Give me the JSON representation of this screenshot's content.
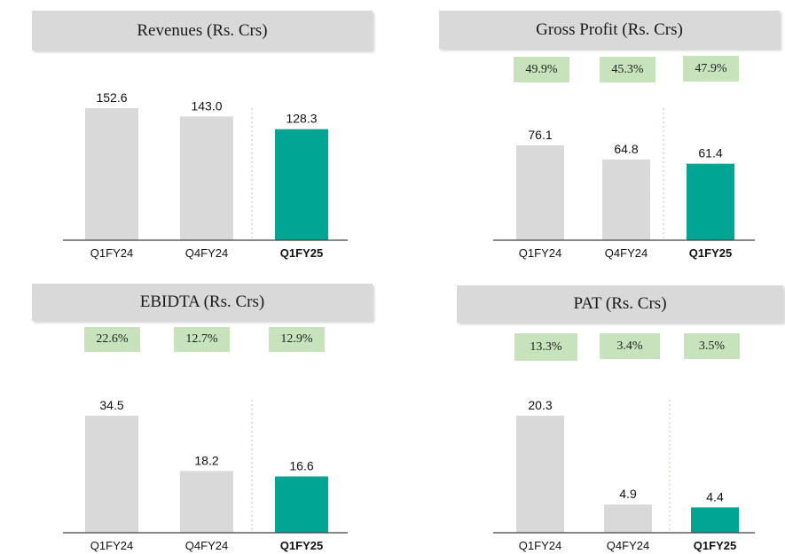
{
  "colors": {
    "past_bar": "#d9d9d9",
    "current_bar": "#00a693",
    "title_bg": "#d9d9d9",
    "badge_bg": "#c6e3bb",
    "divider": "#c9c9a8"
  },
  "chart_data": [
    {
      "type": "bar",
      "title": "Revenues (Rs. Crs)",
      "categories": [
        "Q1FY24",
        "Q4FY24",
        "Q1FY25"
      ],
      "values": [
        152.6,
        143.0,
        128.3
      ],
      "value_labels": [
        "152.6",
        "143.0",
        "128.3"
      ],
      "margins": [],
      "highlight_index": 2,
      "grid": false
    },
    {
      "type": "bar",
      "title": "Gross Profit (Rs. Crs)",
      "categories": [
        "Q1FY24",
        "Q4FY24",
        "Q1FY25"
      ],
      "values": [
        76.1,
        64.8,
        61.4
      ],
      "value_labels": [
        "76.1",
        "64.8",
        "61.4"
      ],
      "margins": [
        "49.9%",
        "45.3%",
        "47.9%"
      ],
      "highlight_index": 2,
      "grid": false
    },
    {
      "type": "bar",
      "title": "EBIDTA (Rs. Crs)",
      "categories": [
        "Q1FY24",
        "Q4FY24",
        "Q1FY25"
      ],
      "values": [
        34.5,
        18.2,
        16.6
      ],
      "value_labels": [
        "34.5",
        "18.2",
        "16.6"
      ],
      "margins": [
        "22.6%",
        "12.7%",
        "12.9%"
      ],
      "highlight_index": 2,
      "grid": false
    },
    {
      "type": "bar",
      "title": "PAT (Rs. Crs)",
      "categories": [
        "Q1FY24",
        "Q4FY24",
        "Q1FY25"
      ],
      "values": [
        20.3,
        4.9,
        4.4
      ],
      "value_labels": [
        "20.3",
        "4.9",
        "4.4"
      ],
      "margins": [
        "13.3%",
        "3.4%",
        "3.5%"
      ],
      "highlight_index": 2,
      "grid": false
    }
  ]
}
